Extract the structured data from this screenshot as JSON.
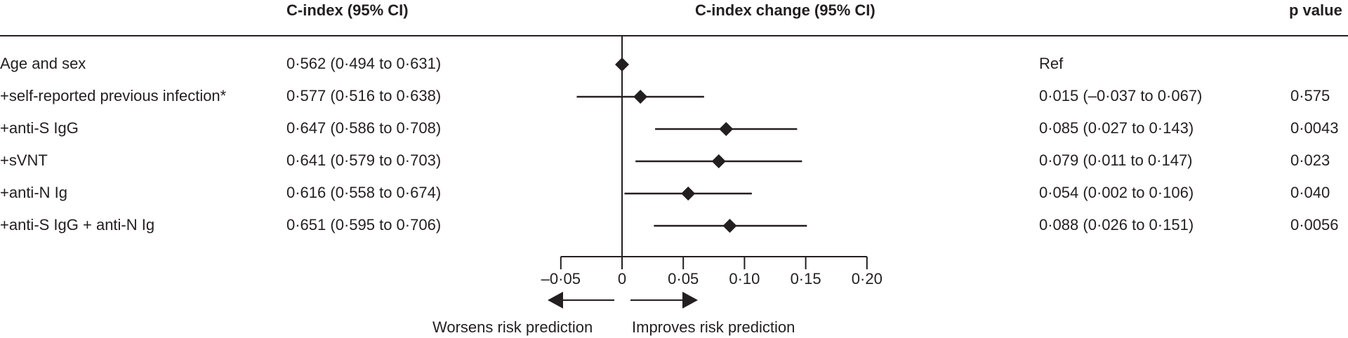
{
  "headers": {
    "cindex": "C-index (95% CI)",
    "change": "C-index change (95% CI)",
    "pvalue": "p value"
  },
  "rows": [
    {
      "model": "Age and sex",
      "cindex": "0·562 (0·494 to 0·631)",
      "change": "Ref",
      "p": ""
    },
    {
      "model": "+self-reported previous infection*",
      "cindex": "0·577 (0·516 to 0·638)",
      "change": "0·015 (–0·037 to 0·067)",
      "p": "0·575"
    },
    {
      "model": "+anti-S IgG",
      "cindex": "0·647 (0·586 to 0·708)",
      "change": "0·085 (0·027 to 0·143)",
      "p": "0·0043"
    },
    {
      "model": "+sVNT",
      "cindex": "0·641 (0·579 to 0·703)",
      "change": "0·079 (0·011 to 0·147)",
      "p": "0·023"
    },
    {
      "model": "+anti-N Ig",
      "cindex": "0·616 (0·558 to 0·674)",
      "change": "0·054 (0·002 to 0·106)",
      "p": "0·040"
    },
    {
      "model": "+anti-S IgG + anti-N Ig",
      "cindex": "0·651 (0·595 to 0·706)",
      "change": "0·088 (0·026 to 0·151)",
      "p": "0·0056"
    }
  ],
  "legend": {
    "worsens": "Worsens risk prediction",
    "improves": "Improves risk prediction"
  },
  "chart_data": {
    "type": "forest",
    "xlim": [
      -0.05,
      0.2
    ],
    "xticks": [
      -0.05,
      0,
      0.05,
      0.1,
      0.15,
      0.2
    ],
    "xtick_labels": [
      "–0·05",
      "0",
      "0·05",
      "0·10",
      "0·15",
      "0·20"
    ],
    "reference_line": 0,
    "estimates": [
      {
        "label": "Age and sex",
        "value": 0,
        "lo": null,
        "hi": null
      },
      {
        "label": "+self-reported previous infection*",
        "value": 0.015,
        "lo": -0.037,
        "hi": 0.067
      },
      {
        "label": "+anti-S IgG",
        "value": 0.085,
        "lo": 0.027,
        "hi": 0.143
      },
      {
        "label": "+sVNT",
        "value": 0.079,
        "lo": 0.011,
        "hi": 0.147
      },
      {
        "label": "+anti-N Ig",
        "value": 0.054,
        "lo": 0.002,
        "hi": 0.106
      },
      {
        "label": "+anti-S IgG + anti-N Ig",
        "value": 0.088,
        "lo": 0.026,
        "hi": 0.151
      }
    ]
  }
}
